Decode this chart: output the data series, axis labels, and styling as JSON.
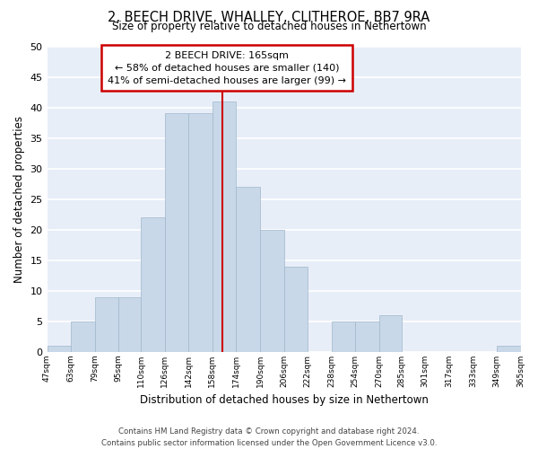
{
  "title": "2, BEECH DRIVE, WHALLEY, CLITHEROE, BB7 9RA",
  "subtitle": "Size of property relative to detached houses in Nethertown",
  "xlabel": "Distribution of detached houses by size in Nethertown",
  "ylabel": "Number of detached properties",
  "bar_color": "#c8d8e8",
  "bar_edge_color": "#a0b8cc",
  "background_color": "#ffffff",
  "axes_bg_color": "#e8eef8",
  "grid_color": "#ffffff",
  "bins": [
    47,
    63,
    79,
    95,
    110,
    126,
    142,
    158,
    174,
    190,
    206,
    222,
    238,
    254,
    270,
    285,
    301,
    317,
    333,
    349,
    365
  ],
  "counts": [
    1,
    5,
    9,
    9,
    22,
    39,
    39,
    41,
    27,
    20,
    14,
    0,
    5,
    5,
    6,
    0,
    0,
    0,
    0,
    1,
    0
  ],
  "tick_labels": [
    "47sqm",
    "63sqm",
    "79sqm",
    "95sqm",
    "110sqm",
    "126sqm",
    "142sqm",
    "158sqm",
    "174sqm",
    "190sqm",
    "206sqm",
    "222sqm",
    "238sqm",
    "254sqm",
    "270sqm",
    "285sqm",
    "301sqm",
    "317sqm",
    "333sqm",
    "349sqm",
    "365sqm"
  ],
  "ylim": [
    0,
    50
  ],
  "yticks": [
    0,
    5,
    10,
    15,
    20,
    25,
    30,
    35,
    40,
    45,
    50
  ],
  "vline_x": 165,
  "vline_color": "#cc0000",
  "annotation_title": "2 BEECH DRIVE: 165sqm",
  "annotation_line1": "← 58% of detached houses are smaller (140)",
  "annotation_line2": "41% of semi-detached houses are larger (99) →",
  "annotation_box_color": "#ffffff",
  "annotation_box_edge": "#cc0000",
  "footer_line1": "Contains HM Land Registry data © Crown copyright and database right 2024.",
  "footer_line2": "Contains public sector information licensed under the Open Government Licence v3.0."
}
